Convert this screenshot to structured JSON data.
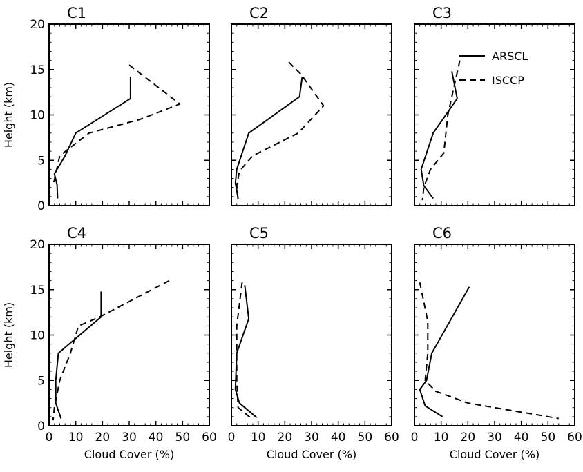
{
  "chart_data": [
    {
      "type": "line",
      "title": "C1",
      "xlabel": "",
      "ylabel": "Height (km)",
      "xlim": [
        0,
        60
      ],
      "ylim": [
        0,
        20
      ],
      "xticks": [
        "",
        "",
        "",
        "",
        "",
        "",
        ""
      ],
      "yticks": [
        "0",
        "5",
        "10",
        "15",
        "20"
      ],
      "series": [
        {
          "name": "ARSCL",
          "style": "solid",
          "x": [
            30.5,
            30.5,
            10,
            6,
            2,
            3,
            3.2
          ],
          "y": [
            14.2,
            11.8,
            8,
            5.5,
            3.5,
            2.3,
            0.8
          ]
        },
        {
          "name": "ISCCP",
          "style": "dashed",
          "x": [
            30,
            49,
            34,
            15,
            4,
            1.5
          ],
          "y": [
            15.5,
            11.2,
            9.5,
            8,
            5.5,
            2.2
          ]
        }
      ]
    },
    {
      "type": "line",
      "title": "C2",
      "xlabel": "",
      "ylabel": "",
      "xlim": [
        0,
        60
      ],
      "ylim": [
        0,
        20
      ],
      "xticks": [
        "",
        "",
        "",
        "",
        "",
        "",
        ""
      ],
      "yticks": [
        "",
        "",
        "",
        "",
        ""
      ],
      "series": [
        {
          "name": "ARSCL",
          "style": "solid",
          "x": [
            26.5,
            25.5,
            6.5,
            2,
            1.5,
            2.5
          ],
          "y": [
            14.2,
            12,
            8,
            4,
            2.5,
            0.8
          ]
        },
        {
          "name": "ISCCP",
          "style": "dashed",
          "x": [
            21.5,
            26,
            34.5,
            25,
            8,
            3,
            2,
            2.5
          ],
          "y": [
            15.8,
            14.5,
            11,
            8,
            5.5,
            3.8,
            2.2,
            0.6
          ]
        }
      ]
    },
    {
      "type": "line",
      "title": "C3",
      "xlabel": "",
      "ylabel": "",
      "xlim": [
        0,
        60
      ],
      "ylim": [
        0,
        20
      ],
      "xticks": [
        "",
        "",
        "",
        "",
        "",
        "",
        ""
      ],
      "yticks": [
        "",
        "",
        "",
        "",
        ""
      ],
      "series": [
        {
          "name": "ARSCL",
          "style": "solid",
          "x": [
            14,
            16,
            7,
            2.5,
            3.5,
            7
          ],
          "y": [
            14.8,
            11.8,
            8,
            4,
            2.2,
            0.8
          ]
        },
        {
          "name": "ISCCP",
          "style": "dashed",
          "x": [
            17,
            12.5,
            11,
            6,
            3.5,
            3
          ],
          "y": [
            16,
            10,
            5.8,
            4,
            2,
            0.6
          ]
        }
      ],
      "legend": {
        "position": "top-right",
        "entries": [
          "ARSCL",
          "ISCCP"
        ]
      }
    },
    {
      "type": "line",
      "title": "C4",
      "xlabel": "Cloud Cover (%)",
      "ylabel": "Height (km)",
      "xlim": [
        0,
        60
      ],
      "ylim": [
        0,
        20
      ],
      "xticks": [
        "0",
        "10",
        "20",
        "30",
        "40",
        "50",
        "60"
      ],
      "yticks": [
        "0",
        "5",
        "10",
        "15",
        "20"
      ],
      "series": [
        {
          "name": "ARSCL",
          "style": "solid",
          "x": [
            19.5,
            19.5,
            3.5,
            2.5,
            2.5,
            4.5
          ],
          "y": [
            14.8,
            12,
            8,
            5,
            2.5,
            0.8
          ]
        },
        {
          "name": "ISCCP",
          "style": "dashed",
          "x": [
            45,
            19,
            11,
            8,
            4,
            2,
            1.5
          ],
          "y": [
            16,
            12,
            11,
            8,
            5,
            2,
            0.6
          ]
        }
      ]
    },
    {
      "type": "line",
      "title": "C5",
      "xlabel": "Cloud Cover (%)",
      "ylabel": "",
      "xlim": [
        0,
        60
      ],
      "ylim": [
        0,
        20
      ],
      "xticks": [
        "0",
        "10",
        "20",
        "30",
        "40",
        "50",
        "60"
      ],
      "yticks": [
        "",
        "",
        "",
        "",
        ""
      ],
      "series": [
        {
          "name": "ARSCL",
          "style": "solid",
          "x": [
            5,
            6.5,
            2,
            1.5,
            3,
            9.5
          ],
          "y": [
            15.5,
            11.8,
            8,
            4,
            2.5,
            0.9
          ]
        },
        {
          "name": "ISCCP",
          "style": "dashed",
          "x": [
            4,
            2,
            2,
            2,
            2.5,
            7.5
          ],
          "y": [
            15.8,
            11,
            8,
            5,
            2,
            0.8
          ]
        }
      ]
    },
    {
      "type": "line",
      "title": "C6",
      "xlabel": "Cloud Cover (%)",
      "ylabel": "",
      "xlim": [
        0,
        60
      ],
      "ylim": [
        0,
        20
      ],
      "xticks": [
        "0",
        "10",
        "20",
        "30",
        "40",
        "50",
        "60"
      ],
      "yticks": [
        "",
        "",
        "",
        "",
        ""
      ],
      "series": [
        {
          "name": "ARSCL",
          "style": "solid",
          "x": [
            20.5,
            6.5,
            4.5,
            2,
            4,
            10.5
          ],
          "y": [
            15.3,
            8,
            5,
            4,
            2.2,
            1
          ]
        },
        {
          "name": "ISCCP",
          "style": "dashed",
          "x": [
            2,
            5,
            5,
            4,
            8,
            20,
            54
          ],
          "y": [
            15.8,
            11.5,
            8,
            5,
            3.8,
            2.5,
            0.8
          ]
        }
      ]
    }
  ]
}
